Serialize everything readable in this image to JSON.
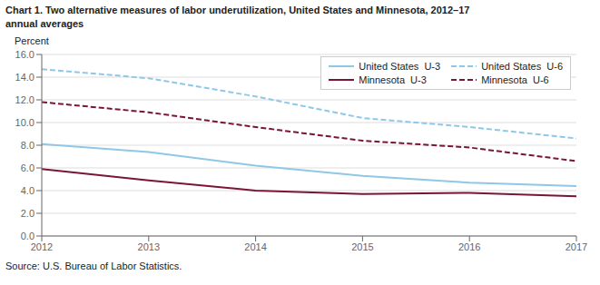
{
  "chart_data": {
    "type": "line",
    "title": "Chart 1. Two alternative measures of labor underutilization, United States and Minnesota, 2012–17",
    "subtitle": "annual averages",
    "y_label": "Percent",
    "annotations": [
      "Source: U.S. Bureau of Labor Statistics."
    ],
    "x": [
      2012,
      2013,
      2014,
      2015,
      2016,
      2017
    ],
    "series": [
      {
        "name": "United States  U-3",
        "color": "#8EC8E8",
        "line_style": "solid",
        "values": [
          8.1,
          7.4,
          6.2,
          5.3,
          4.7,
          4.4
        ]
      },
      {
        "name": "United States  U-6",
        "color": "#8EC8E8",
        "line_style": "dashed",
        "values": [
          14.7,
          13.9,
          12.3,
          10.4,
          9.6,
          8.6
        ]
      },
      {
        "name": "Minnesota  U-3",
        "color": "#7B1535",
        "line_style": "solid",
        "values": [
          5.9,
          4.9,
          4.0,
          3.7,
          3.8,
          3.5
        ]
      },
      {
        "name": "Minnesota  U-6",
        "color": "#7B1535",
        "line_style": "dashed",
        "values": [
          11.8,
          10.9,
          9.6,
          8.4,
          7.8,
          6.6
        ]
      }
    ],
    "xlim": [
      2012,
      2017
    ],
    "xticks": [
      2012,
      2013,
      2014,
      2015,
      2016,
      2017
    ],
    "ylim": [
      0,
      16
    ],
    "yticks": [
      {
        "value": 0,
        "label": "0.0"
      },
      {
        "value": 2,
        "label": "2.0"
      },
      {
        "value": 4,
        "label": "4.0"
      },
      {
        "value": 6,
        "label": "6.0"
      },
      {
        "value": 8,
        "label": "8.0"
      },
      {
        "value": 10,
        "label": "10.0"
      },
      {
        "value": 12,
        "label": "12.0"
      },
      {
        "value": 14,
        "label": "14.0"
      },
      {
        "value": 16,
        "label": "16.0"
      }
    ],
    "grid": true,
    "legend": "upper right"
  }
}
